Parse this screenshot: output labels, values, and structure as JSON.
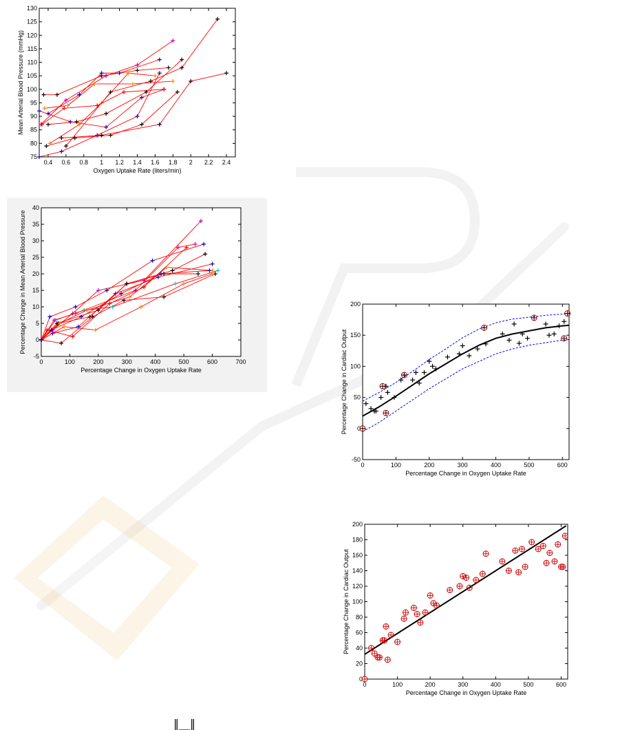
{
  "chart_data": [
    {
      "id": "c1",
      "type": "line",
      "xlabel": "Oxygen Uptake Rate (liters/min)",
      "ylabel": "Mean Arterial Blood Pressure (mmHg)",
      "xlim": [
        0.3,
        2.5
      ],
      "ylim": [
        75,
        130
      ],
      "xticks": [
        0.4,
        0.6,
        0.8,
        1,
        1.2,
        1.4,
        1.6,
        1.8,
        2,
        2.2,
        2.4
      ],
      "yticks": [
        75,
        80,
        85,
        90,
        95,
        100,
        105,
        110,
        115,
        120,
        125,
        130
      ],
      "line_color": "#ff0000",
      "grid": false,
      "series": [
        {
          "x": [
            0.3,
            0.55,
            0.95,
            1.4,
            1.65
          ],
          "y": [
            75,
            77,
            83,
            90,
            106
          ],
          "color": "#0000cc"
        },
        {
          "x": [
            0.32,
            0.6,
            1.05,
            1.4,
            1.8
          ],
          "y": [
            87,
            96,
            105,
            109,
            118
          ],
          "color": "#cc00cc"
        },
        {
          "x": [
            0.35,
            0.5,
            1.0,
            1.4,
            1.75
          ],
          "y": [
            98,
            98,
            105,
            107,
            108
          ],
          "color": "#000000"
        },
        {
          "x": [
            0.38,
            0.7,
            1.1,
            1.45,
            1.85
          ],
          "y": [
            79,
            82,
            83,
            87,
            99
          ],
          "color": "#000000"
        },
        {
          "x": [
            0.42,
            0.75,
            1.0,
            1.3,
            1.6
          ],
          "y": [
            80,
            87,
            95,
            106,
            105
          ],
          "color": "#ff8800"
        },
        {
          "x": [
            0.3,
            0.65,
            1.05,
            1.45,
            1.7
          ],
          "y": [
            92,
            88,
            86,
            97,
            100
          ],
          "color": "#0000cc"
        },
        {
          "x": [
            0.33,
            0.58,
            0.95,
            1.25,
            1.7
          ],
          "y": [
            87,
            93,
            94,
            99,
            100
          ],
          "color": "#ff0000"
        },
        {
          "x": [
            0.36,
            0.62,
            0.92,
            1.35,
            1.8
          ],
          "y": [
            93,
            94,
            102,
            102,
            103
          ],
          "color": "#ff8800"
        },
        {
          "x": [
            0.4,
            0.75,
            1.0,
            1.2,
            1.65
          ],
          "y": [
            91,
            98,
            106,
            106,
            111
          ],
          "color": "#0000cc"
        },
        {
          "x": [
            0.4,
            0.72,
            1.05,
            1.5,
            1.9
          ],
          "y": [
            87,
            88,
            91,
            99,
            111
          ],
          "color": "#000000"
        },
        {
          "x": [
            0.55,
            1.0,
            1.65,
            2.0,
            2.4
          ],
          "y": [
            82,
            83,
            87,
            103,
            106
          ],
          "color": "#000000"
        },
        {
          "x": [
            0.6,
            1.1,
            1.55,
            1.9,
            2.3
          ],
          "y": [
            79,
            99,
            103,
            108,
            126
          ],
          "color": "#000000"
        }
      ]
    },
    {
      "id": "c2",
      "type": "line",
      "xlabel": "Percentage Change in Oxygen Uptake Rate",
      "ylabel": "Percentage Change in Mean Arterial Blood Pressure",
      "xlim": [
        0,
        700
      ],
      "ylim": [
        -5,
        40
      ],
      "xticks": [
        0,
        100,
        200,
        300,
        400,
        500,
        600,
        700
      ],
      "yticks": [
        -5,
        0,
        5,
        10,
        15,
        20,
        25,
        30,
        35,
        40
      ],
      "line_color": "#ff0000",
      "grid": false,
      "series": [
        {
          "x": [
            0,
            40,
            110,
            200,
            360,
            560
          ],
          "y": [
            0,
            3,
            8,
            15,
            18,
            36
          ],
          "color": "#cc00cc"
        },
        {
          "x": [
            0,
            30,
            120,
            230,
            390,
            570
          ],
          "y": [
            0,
            7,
            10,
            15,
            24,
            29
          ],
          "color": "#0000cc"
        },
        {
          "x": [
            0,
            60,
            170,
            300,
            460,
            575
          ],
          "y": [
            0,
            5,
            7,
            17,
            21,
            26
          ],
          "color": "#000000"
        },
        {
          "x": [
            0,
            70,
            180,
            290,
            430,
            610
          ],
          "y": [
            0,
            -1,
            7,
            12,
            13,
            20
          ],
          "color": "#000000"
        },
        {
          "x": [
            0,
            50,
            150,
            250,
            470,
            620
          ],
          "y": [
            0,
            6,
            9,
            10,
            17,
            21
          ],
          "color": "#00cccc"
        },
        {
          "x": [
            0,
            40,
            130,
            260,
            410,
            600
          ],
          "y": [
            0,
            2,
            4,
            14,
            19,
            23
          ],
          "color": "#0000cc"
        },
        {
          "x": [
            0,
            45,
            120,
            330,
            480,
            540
          ],
          "y": [
            0,
            6,
            8,
            15,
            28,
            29
          ],
          "color": "#cc00cc"
        },
        {
          "x": [
            0,
            80,
            190,
            350,
            500,
            600
          ],
          "y": [
            0,
            4,
            3,
            10,
            17,
            20
          ],
          "color": "#ff8800"
        },
        {
          "x": [
            0,
            55,
            200,
            300,
            430,
            550
          ],
          "y": [
            0,
            5,
            9,
            17,
            20,
            20
          ],
          "color": "#000000"
        },
        {
          "x": [
            0,
            20,
            110,
            240,
            360,
            510
          ],
          "y": [
            0,
            3,
            1,
            11,
            16,
            28
          ],
          "color": "#ff0000"
        },
        {
          "x": [
            0,
            65,
            160,
            310,
            440,
            600
          ],
          "y": [
            0,
            5,
            9,
            13,
            22,
            21
          ],
          "color": "#ff8800"
        },
        {
          "x": [
            0,
            35,
            140,
            280,
            420,
            590
          ],
          "y": [
            0,
            3,
            7,
            14,
            20,
            21
          ],
          "color": "#0000cc"
        }
      ]
    },
    {
      "id": "c3",
      "type": "scatter",
      "xlabel": "Percentage Change in Oxygen Uptake Rate",
      "ylabel": "Percentage Change in Cardiac Output",
      "xlim": [
        0,
        620
      ],
      "ylim": [
        -50,
        200
      ],
      "xticks": [
        0,
        100,
        200,
        300,
        400,
        500,
        600
      ],
      "yticks": [
        -50,
        0,
        50,
        100,
        150,
        200
      ],
      "fit_curve": {
        "x": [
          0,
          50,
          100,
          150,
          200,
          250,
          300,
          350,
          400,
          450,
          500,
          550,
          600,
          620
        ],
        "y": [
          20,
          35,
          52,
          70,
          88,
          104,
          120,
          134,
          145,
          152,
          157,
          162,
          165,
          166
        ],
        "color": "#000000"
      },
      "upper_band": {
        "x": [
          0,
          50,
          100,
          150,
          200,
          250,
          300,
          350,
          400,
          450,
          500,
          550,
          600,
          620
        ],
        "y": [
          44,
          58,
          74,
          92,
          111,
          128,
          146,
          160,
          170,
          176,
          179,
          182,
          184,
          185
        ],
        "color": "#0000ff"
      },
      "lower_band": {
        "x": [
          0,
          50,
          100,
          150,
          200,
          250,
          300,
          350,
          400,
          450,
          500,
          550,
          600,
          620
        ],
        "y": [
          -5,
          10,
          28,
          46,
          64,
          80,
          96,
          108,
          120,
          128,
          134,
          138,
          142,
          143
        ],
        "color": "#0000ff"
      },
      "plus_points": {
        "x": [
          10,
          25,
          35,
          40,
          55,
          70,
          75,
          95,
          115,
          125,
          150,
          160,
          170,
          185,
          200,
          210,
          220,
          255,
          290,
          300,
          320,
          345,
          370,
          420,
          440,
          455,
          470,
          480,
          495,
          550,
          560,
          575,
          590,
          605
        ],
        "y": [
          40,
          32,
          28,
          28,
          50,
          68,
          58,
          50,
          78,
          86,
          78,
          90,
          73,
          90,
          108,
          100,
          96,
          115,
          120,
          133,
          117,
          128,
          136,
          152,
          142,
          168,
          137,
          152,
          145,
          168,
          150,
          152,
          165,
          172
        ],
        "color": "#000000"
      },
      "circle_points": {
        "x": [
          0,
          60,
          70,
          125,
          365,
          515,
          605,
          615
        ],
        "y": [
          0,
          68,
          25,
          86,
          162,
          178,
          145,
          185
        ],
        "color": "#cc0000"
      }
    },
    {
      "id": "c4",
      "type": "scatter",
      "xlabel": "Percentage Change in Oxygen Uptake Rate",
      "ylabel": "Percentage Change in Cardiac Output",
      "xlim": [
        0,
        620
      ],
      "ylim": [
        0,
        200
      ],
      "xticks": [
        0,
        100,
        200,
        300,
        400,
        500,
        600
      ],
      "yticks": [
        0,
        20,
        40,
        60,
        80,
        100,
        120,
        140,
        160,
        180,
        200
      ],
      "fit_line": {
        "x": [
          0,
          615
        ],
        "y": [
          32,
          198
        ],
        "color": "#000000"
      },
      "points": {
        "x": [
          0,
          20,
          30,
          40,
          45,
          55,
          60,
          65,
          70,
          80,
          100,
          120,
          125,
          150,
          160,
          170,
          185,
          200,
          210,
          220,
          260,
          290,
          300,
          310,
          320,
          340,
          360,
          370,
          420,
          440,
          460,
          470,
          480,
          490,
          510,
          530,
          545,
          555,
          565,
          580,
          590,
          600,
          605,
          612
        ],
        "y": [
          0,
          40,
          33,
          28,
          28,
          50,
          50,
          68,
          25,
          57,
          48,
          78,
          86,
          92,
          84,
          73,
          86,
          108,
          98,
          95,
          115,
          120,
          133,
          131,
          118,
          128,
          136,
          162,
          152,
          140,
          166,
          138,
          168,
          145,
          177,
          168,
          172,
          150,
          163,
          152,
          174,
          145,
          145,
          185
        ],
        "color": "#cc0000"
      }
    }
  ],
  "page": {
    "footer_glyph": "‖__‖"
  }
}
